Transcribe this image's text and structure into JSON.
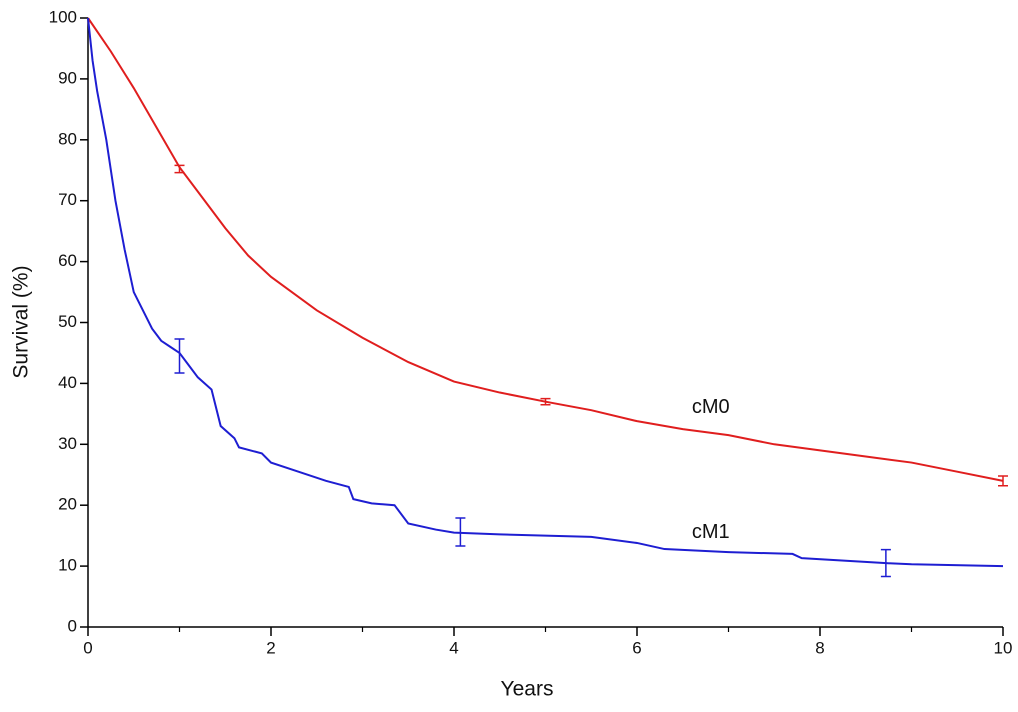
{
  "chart_data": {
    "type": "line",
    "xlabel": "Years",
    "ylabel": "Survival (%)",
    "xlim": [
      0,
      10
    ],
    "xticks": [
      0,
      2,
      4,
      6,
      8,
      10
    ],
    "xminorticks": [
      1,
      3,
      5,
      7,
      9
    ],
    "ylim": [
      0,
      100
    ],
    "yticks": [
      0,
      10,
      20,
      30,
      40,
      50,
      60,
      70,
      80,
      90,
      100
    ],
    "series": [
      {
        "name": "cM0",
        "color": "#e01e1e",
        "x": [
          0,
          0.25,
          0.5,
          0.75,
          1,
          1.25,
          1.5,
          1.75,
          2,
          2.5,
          3,
          3.5,
          4,
          4.5,
          5,
          5.5,
          6,
          6.5,
          7,
          7.5,
          8,
          8.5,
          9,
          9.5,
          10
        ],
        "values": [
          100,
          94.5,
          88.5,
          82,
          75.5,
          70.5,
          65.5,
          61,
          57.5,
          52,
          47.5,
          43.5,
          40.3,
          38.5,
          37,
          35.6,
          33.8,
          32.5,
          31.5,
          30,
          29,
          28,
          27,
          25.5,
          24
        ],
        "errorbars": {
          "x": [
            1,
            5,
            10
          ],
          "values": [
            75.2,
            37,
            24
          ],
          "errors": [
            0.6,
            0.5,
            0.8
          ]
        },
        "label_at": [
          6.6,
          36
        ]
      },
      {
        "name": "cM1",
        "color": "#1e1ed2",
        "x": [
          0,
          0.05,
          0.1,
          0.2,
          0.3,
          0.4,
          0.5,
          0.6,
          0.7,
          0.8,
          0.9,
          1,
          1.1,
          1.2,
          1.35,
          1.45,
          1.6,
          1.65,
          1.9,
          2,
          2.3,
          2.6,
          2.85,
          2.9,
          3.1,
          3.35,
          3.5,
          3.8,
          4,
          4.5,
          5.5,
          6,
          6.3,
          7,
          7.7,
          7.8,
          8.7,
          9,
          10
        ],
        "values": [
          100,
          93,
          88,
          80,
          70,
          62,
          55,
          52,
          49,
          47,
          46,
          45,
          43,
          41,
          39,
          33,
          31,
          29.5,
          28.5,
          27,
          25.5,
          24,
          23,
          21,
          20.3,
          20,
          17,
          16,
          15.5,
          15.2,
          14.8,
          13.8,
          12.8,
          12.3,
          12,
          11.3,
          10.5,
          10.3,
          10
        ],
        "errorbars": {
          "x": [
            1,
            4.07,
            8.72
          ],
          "values": [
            44.5,
            15.6,
            10.5
          ],
          "errors": [
            2.8,
            2.3,
            2.2
          ]
        },
        "label_at": [
          6.6,
          15.5
        ]
      }
    ]
  }
}
